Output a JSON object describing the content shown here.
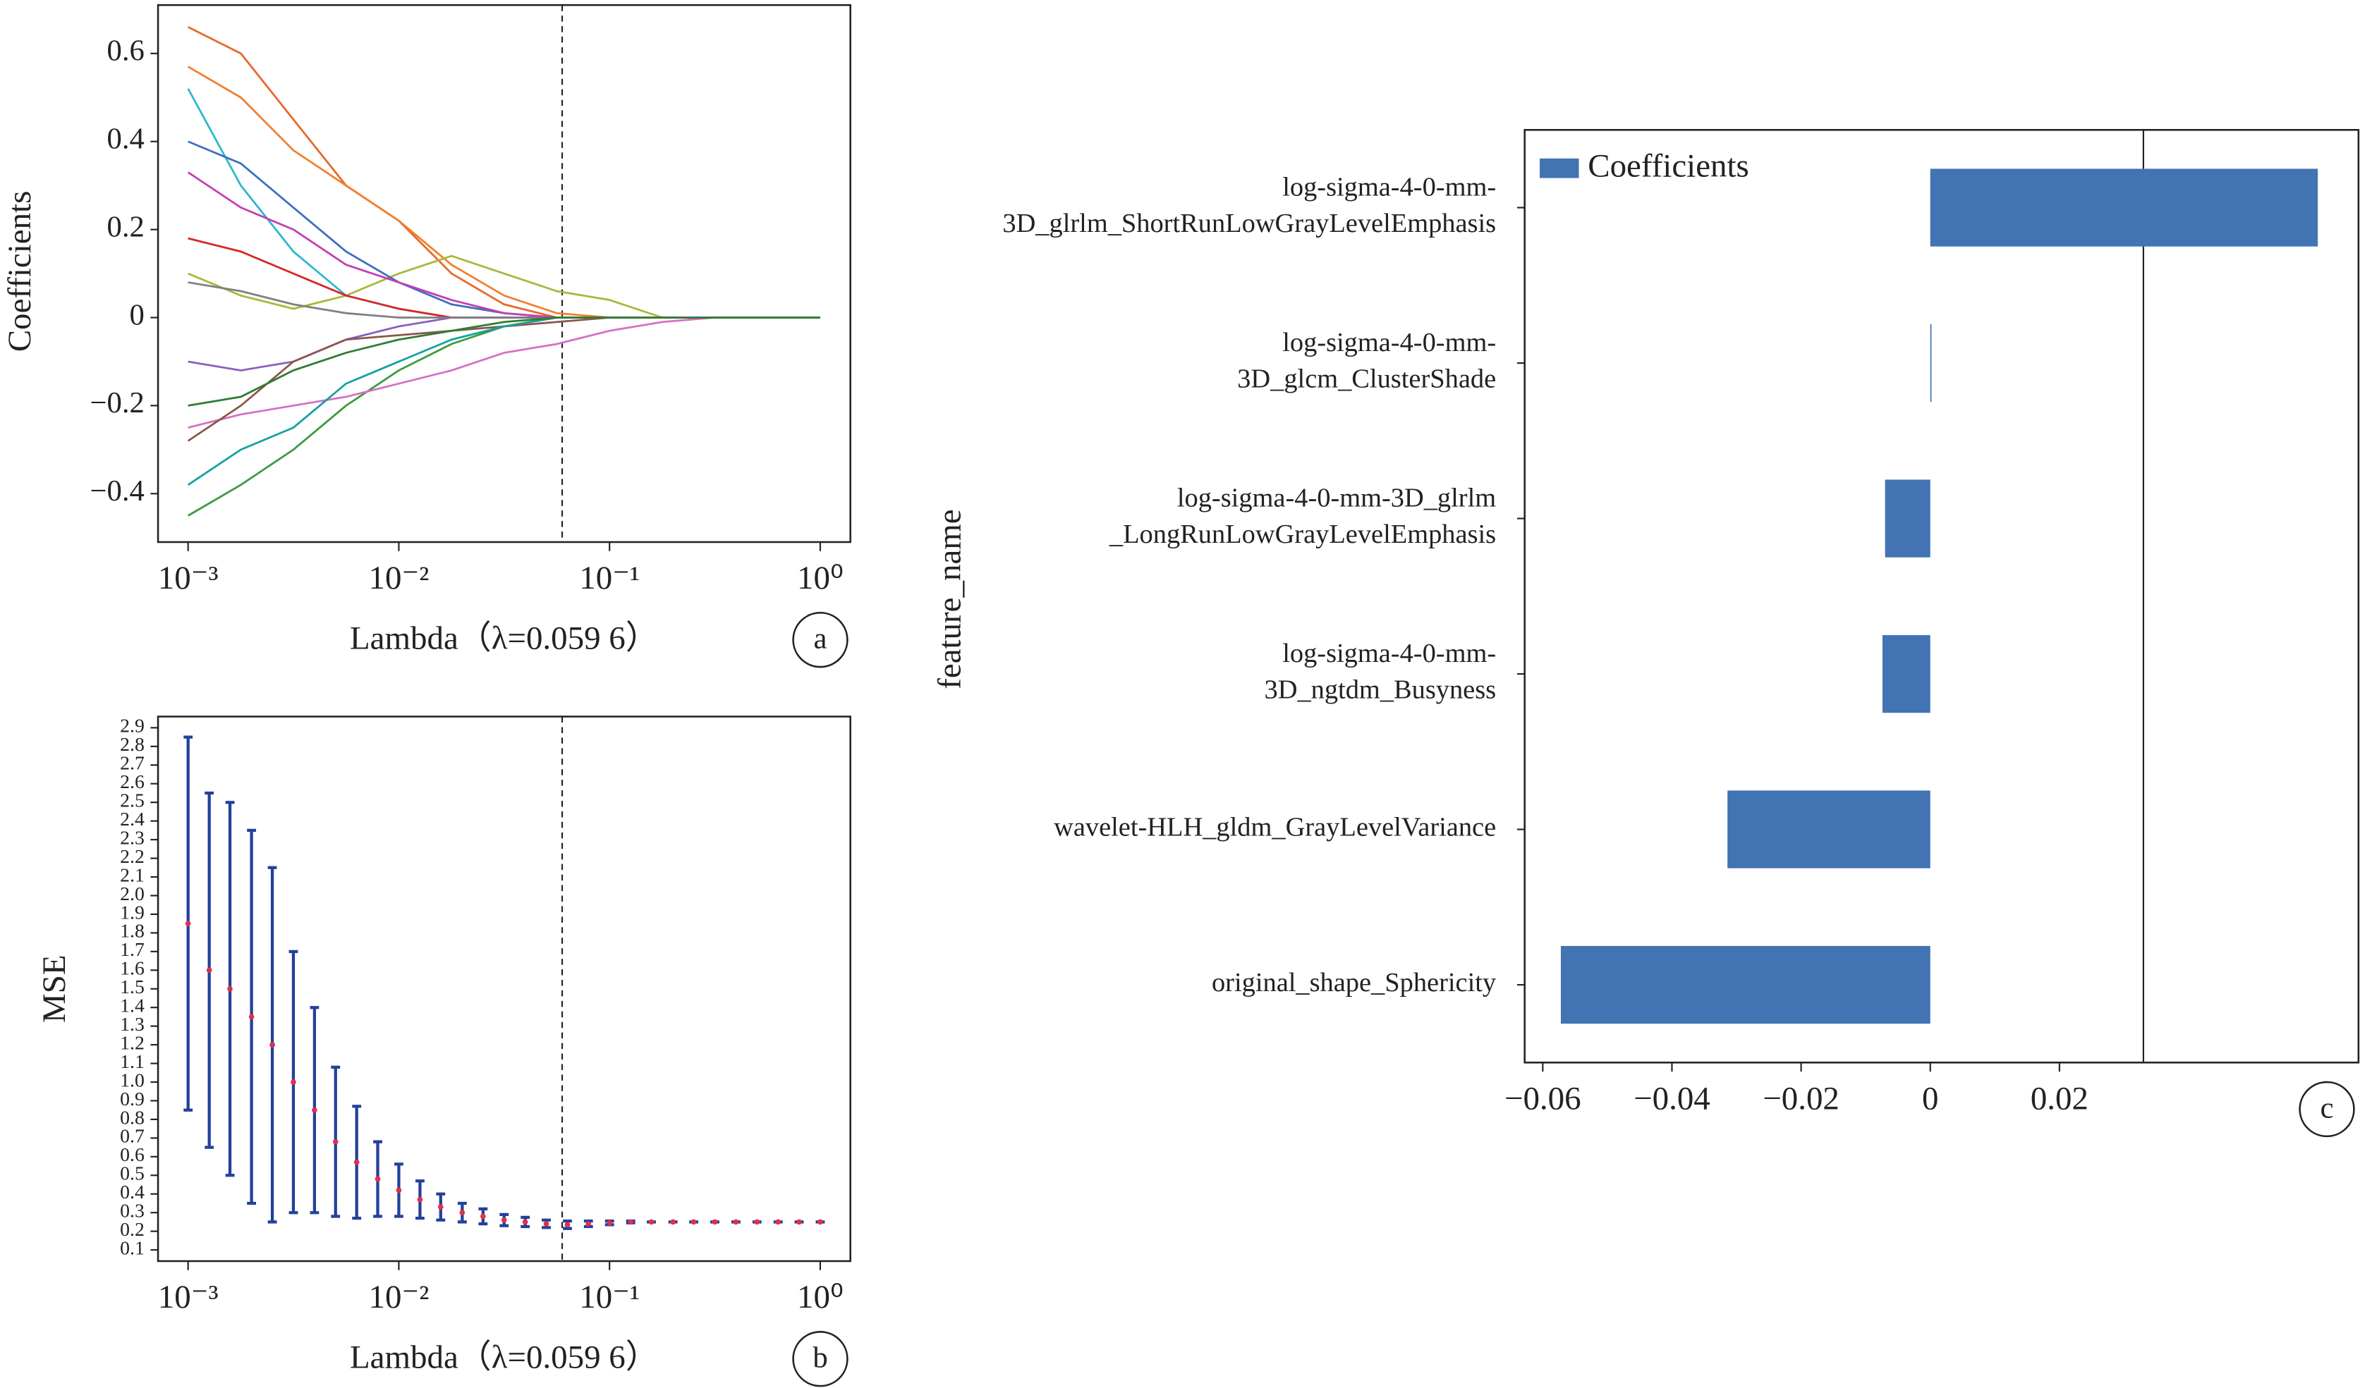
{
  "chart_data": [
    {
      "type": "line",
      "panel": "a",
      "ylabel": "Coefficients",
      "xlabel": "Lambda（λ=0.059 6）",
      "xscale": "log",
      "x": [
        0.001,
        0.00178,
        0.00316,
        0.00562,
        0.01,
        0.0178,
        0.0316,
        0.0562,
        0.1,
        0.178,
        0.316,
        0.562,
        1
      ],
      "xlim": [
        0.00072,
        1.39
      ],
      "xticks": [
        {
          "value": 0.001,
          "label": "10⁻³"
        },
        {
          "value": 0.01,
          "label": "10⁻²"
        },
        {
          "value": 0.1,
          "label": "10⁻¹"
        },
        {
          "value": 1,
          "label": "10⁰"
        }
      ],
      "ylim": [
        -0.51,
        0.71
      ],
      "yticks": [
        {
          "value": -0.4,
          "label": "−0.4"
        },
        {
          "value": -0.2,
          "label": "−0.2"
        },
        0,
        0.2,
        0.4,
        0.6
      ],
      "vline": 0.0596,
      "series": [
        {
          "color": "#e8692a",
          "values": [
            0.66,
            0.6,
            0.45,
            0.3,
            0.22,
            0.1,
            0.03,
            0,
            0,
            0,
            0,
            0,
            0
          ]
        },
        {
          "color": "#f07f2f",
          "values": [
            0.57,
            0.5,
            0.38,
            0.3,
            0.22,
            0.12,
            0.05,
            0.01,
            0,
            0,
            0,
            0,
            0
          ]
        },
        {
          "color": "#a9b83b",
          "values": [
            0.1,
            0.05,
            0.02,
            0.05,
            0.1,
            0.14,
            0.1,
            0.06,
            0.04,
            0,
            0,
            0,
            0
          ]
        },
        {
          "color": "#2bb8d0",
          "values": [
            0.52,
            0.3,
            0.15,
            0.05,
            0.02,
            0,
            0,
            0,
            0,
            0,
            0,
            0,
            0
          ]
        },
        {
          "color": "#3b6fc1",
          "values": [
            0.4,
            0.35,
            0.25,
            0.15,
            0.08,
            0.03,
            0.01,
            0,
            0,
            0,
            0,
            0,
            0
          ]
        },
        {
          "color": "#3d9b3d",
          "values": [
            -0.45,
            -0.38,
            -0.3,
            -0.2,
            -0.12,
            -0.06,
            -0.02,
            0,
            0,
            0,
            0,
            0,
            0
          ]
        },
        {
          "color": "#d670c4",
          "values": [
            -0.25,
            -0.22,
            -0.2,
            -0.18,
            -0.15,
            -0.12,
            -0.08,
            -0.06,
            -0.03,
            -0.01,
            0,
            0,
            0
          ]
        },
        {
          "color": "#d62728",
          "values": [
            0.18,
            0.15,
            0.1,
            0.05,
            0.02,
            0,
            0,
            0,
            0,
            0,
            0,
            0,
            0
          ]
        },
        {
          "color": "#8c5fbf",
          "values": [
            -0.1,
            -0.12,
            -0.1,
            -0.05,
            -0.02,
            0,
            0,
            0,
            0,
            0,
            0,
            0,
            0
          ]
        },
        {
          "color": "#8c564b",
          "values": [
            -0.28,
            -0.2,
            -0.1,
            -0.05,
            -0.04,
            -0.03,
            -0.02,
            -0.01,
            0,
            0,
            0,
            0,
            0
          ]
        },
        {
          "color": "#7f7f7f",
          "values": [
            0.08,
            0.06,
            0.03,
            0.01,
            0,
            0,
            0,
            0,
            0,
            0,
            0,
            0,
            0
          ]
        },
        {
          "color": "#17a2a0",
          "values": [
            -0.38,
            -0.3,
            -0.25,
            -0.15,
            -0.1,
            -0.05,
            -0.02,
            0,
            0,
            0,
            0,
            0,
            0
          ]
        },
        {
          "color": "#c43fb0",
          "values": [
            0.33,
            0.25,
            0.2,
            0.12,
            0.08,
            0.04,
            0.01,
            0,
            0,
            0,
            0,
            0,
            0
          ]
        },
        {
          "color": "#2e7d32",
          "values": [
            -0.2,
            -0.18,
            -0.12,
            -0.08,
            -0.05,
            -0.03,
            -0.01,
            0,
            0,
            0,
            0,
            0,
            0
          ]
        }
      ]
    },
    {
      "type": "errorbar",
      "panel": "b",
      "ylabel": "MSE",
      "xlabel": "Lambda（λ=0.059 6）",
      "xscale": "log",
      "x": [
        0.001,
        0.00126,
        0.00158,
        0.002,
        0.00251,
        0.00316,
        0.00398,
        0.00501,
        0.00631,
        0.00794,
        0.01,
        0.0126,
        0.0158,
        0.02,
        0.0251,
        0.0316,
        0.0398,
        0.0501,
        0.0631,
        0.0794,
        0.1,
        0.126,
        0.158,
        0.2,
        0.251,
        0.316,
        0.398,
        0.501,
        0.631,
        0.794,
        1
      ],
      "values": [
        1.85,
        1.6,
        1.5,
        1.35,
        1.2,
        1.0,
        0.85,
        0.68,
        0.57,
        0.48,
        0.42,
        0.37,
        0.33,
        0.3,
        0.28,
        0.26,
        0.25,
        0.24,
        0.235,
        0.24,
        0.245,
        0.25,
        0.25,
        0.25,
        0.25,
        0.25,
        0.25,
        0.25,
        0.25,
        0.25,
        0.25
      ],
      "errors": [
        1.0,
        0.95,
        1.0,
        1.0,
        0.95,
        0.7,
        0.55,
        0.4,
        0.3,
        0.2,
        0.14,
        0.1,
        0.07,
        0.05,
        0.04,
        0.03,
        0.025,
        0.02,
        0.02,
        0.015,
        0.01,
        0.005,
        0,
        0,
        0,
        0,
        0,
        0,
        0,
        0,
        0
      ],
      "color": "#e0304a",
      "error_color": "#23409a",
      "xlim": [
        0.00072,
        1.39
      ],
      "xticks": [
        {
          "value": 0.001,
          "label": "10⁻³"
        },
        {
          "value": 0.01,
          "label": "10⁻²"
        },
        {
          "value": 0.1,
          "label": "10⁻¹"
        },
        {
          "value": 1,
          "label": "10⁰"
        }
      ],
      "ylim": [
        0.04,
        2.96
      ],
      "yticks": [
        0.1,
        0.2,
        0.3,
        0.4,
        0.5,
        0.6,
        0.7,
        0.8,
        0.9,
        {
          "value": 1,
          "label": "1.0"
        },
        1.1,
        1.2,
        1.3,
        1.4,
        1.5,
        1.6,
        1.7,
        1.8,
        1.9,
        {
          "value": 2,
          "label": "2.0"
        },
        2.1,
        2.2,
        2.3,
        2.4,
        2.5,
        2.6,
        2.7,
        2.8,
        2.9
      ],
      "vline": 0.0596
    },
    {
      "type": "barh",
      "panel": "c",
      "ylabel": "feature_name",
      "categories": [
        [
          "log-sigma-4-0-mm-",
          "3D_glrlm_ShortRunLowGrayLevelEmphasis"
        ],
        [
          "log-sigma-4-0-mm-",
          "3D_glcm_ClusterShade"
        ],
        [
          "log-sigma-4-0-mm-3D_glrlm",
          "_LongRunLowGrayLevelEmphasis"
        ],
        [
          "log-sigma-4-0-mm-",
          "3D_ngtdm_Busyness"
        ],
        [
          "wavelet-HLH_gldm_GrayLevelVariance"
        ],
        [
          "original_shape_Sphericity"
        ]
      ],
      "series": [
        {
          "name": "Coefficients",
          "color": "#4273b3",
          "values": [
            0.06,
            0.0001,
            -0.007,
            -0.0074,
            -0.0314,
            -0.0572
          ]
        }
      ],
      "legend": "upper left",
      "xlim": [
        -0.0628,
        0.0663
      ],
      "xticks": [
        {
          "value": -0.06,
          "label": "−0.06"
        },
        {
          "value": -0.04,
          "label": "−0.04"
        },
        {
          "value": -0.02,
          "label": "−0.02"
        },
        0,
        0.02
      ],
      "vline": 0.033
    }
  ]
}
